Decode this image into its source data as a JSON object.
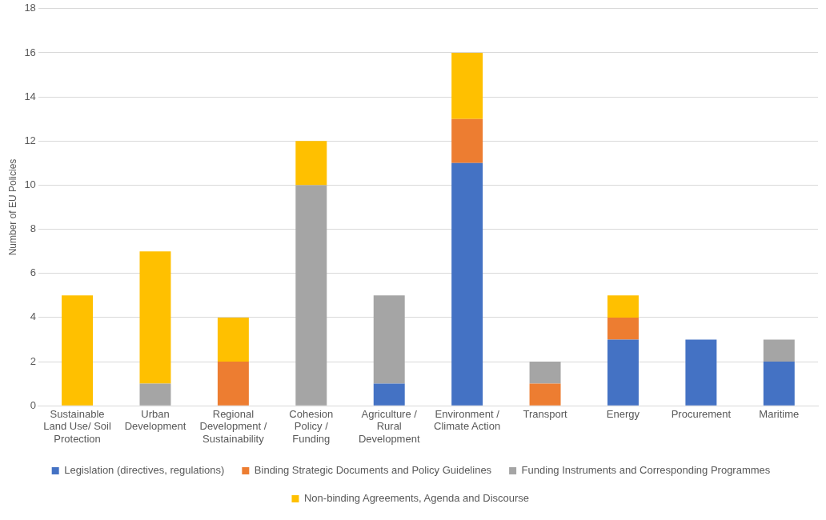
{
  "chart_data": {
    "type": "bar",
    "stacked": true,
    "ylabel": "Number of EU Policies",
    "categories": [
      "Sustainable Land Use/ Soil Protection",
      "Urban Development",
      "Regional Development / Sustainability",
      "Cohesion Policy / Funding",
      "Agriculture / Rural Development",
      "Environment / Climate Action",
      "Transport",
      "Energy",
      "Procurement",
      "Maritime"
    ],
    "series": [
      {
        "name": "Legislation (directives, regulations)",
        "color": "#4472c4",
        "values": [
          0,
          0,
          0,
          0,
          1,
          11,
          0,
          3,
          3,
          2
        ]
      },
      {
        "name": "Binding Strategic Documents and Policy Guidelines",
        "color": "#ed7d31",
        "values": [
          0,
          0,
          2,
          0,
          0,
          2,
          1,
          1,
          0,
          0
        ]
      },
      {
        "name": "Funding Instruments and Corresponding Programmes",
        "color": "#a5a5a5",
        "values": [
          0,
          1,
          0,
          10,
          4,
          0,
          1,
          0,
          0,
          1
        ]
      },
      {
        "name": "Non-binding Agreements, Agenda and Discourse",
        "color": "#ffc000",
        "values": [
          5,
          6,
          2,
          2,
          0,
          3,
          0,
          1,
          0,
          0
        ]
      }
    ],
    "ylim": [
      0,
      18
    ],
    "yticks": [
      0,
      2,
      4,
      6,
      8,
      10,
      12,
      14,
      16,
      18
    ],
    "grid": "y",
    "legend": "bottom"
  }
}
